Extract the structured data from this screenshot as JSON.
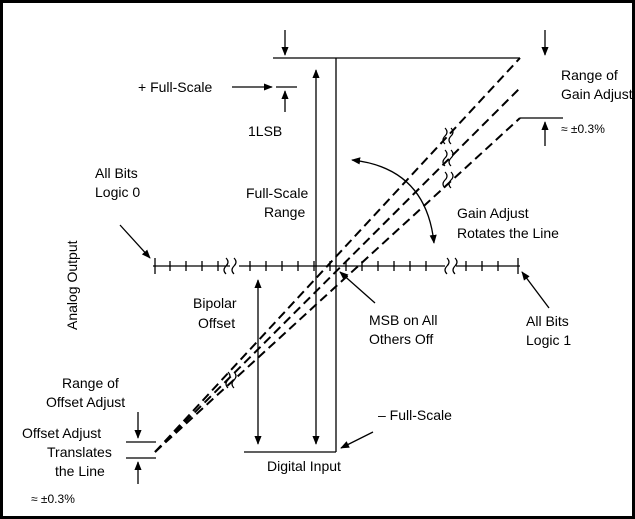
{
  "labels": {
    "full_scale_plus": "+ Full-Scale",
    "one_lsb": "1LSB",
    "range_gain_line1": "Range of",
    "range_gain_line2": "Gain Adjust",
    "range_gain_pct": "≈ ±0.3%",
    "all_bits_0_line1": "All Bits",
    "all_bits_0_line2": "Logic 0",
    "fsr_line1": "Full-Scale",
    "fsr_line2": "Range",
    "gain_adj_line1": "Gain Adjust",
    "gain_adj_line2": "Rotates the Line",
    "analog_output": "Analog Output",
    "bipolar_line1": "Bipolar",
    "bipolar_line2": "Offset",
    "msb_line1": "MSB on All",
    "msb_line2": "Others Off",
    "all_bits_1_line1": "All Bits",
    "all_bits_1_line2": "Logic 1",
    "range_offset_line1": "Range of",
    "range_offset_line2": "Offset Adjust",
    "offset_adj_line1": "Offset Adjust",
    "offset_adj_line2": "Translates",
    "offset_adj_line3": "the Line",
    "offset_pct": "≈ ±0.3%",
    "full_scale_minus": "– Full-Scale",
    "digital_input": "Digital Input"
  }
}
